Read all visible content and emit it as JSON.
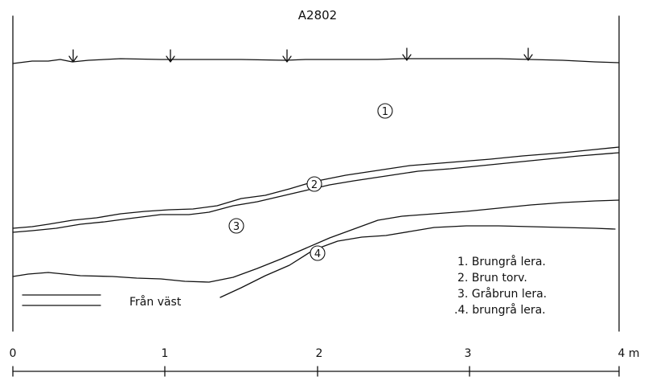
{
  "title": "A2802",
  "layer_markers": [
    "1",
    "2",
    "3",
    "4"
  ],
  "legend": {
    "items": [
      "1. Brungrå lera.",
      "2. Brun torv.",
      "3. Gråbrun lera.",
      ".4. brungrå lera."
    ]
  },
  "direction_label": "Från väst",
  "scale": {
    "ticks": [
      "0",
      "1",
      "2",
      "3",
      "4 m"
    ]
  },
  "colors": {
    "line": "#111111",
    "background": "#ffffff"
  },
  "icons": [
    "sample-arrow-icon"
  ]
}
